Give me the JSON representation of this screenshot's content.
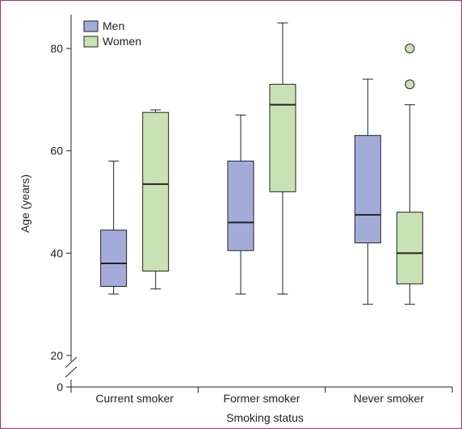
{
  "chart_data": {
    "type": "boxplot",
    "xlabel": "Smoking status",
    "ylabel": "Age (years)",
    "ylim": [
      0,
      85
    ],
    "y_axis_break": [
      0,
      20
    ],
    "yticks": [
      0,
      20,
      40,
      60,
      80
    ],
    "grid": false,
    "legend_placement": "top-left",
    "categories": [
      "Current smoker",
      "Former smoker",
      "Never smoker"
    ],
    "series": [
      {
        "name": "Men",
        "color": "#a3acd9",
        "boxes": [
          {
            "min": 32,
            "q1": 33.5,
            "median": 38,
            "q3": 44.5,
            "max": 58,
            "outliers": []
          },
          {
            "min": 32,
            "q1": 40.5,
            "median": 46,
            "q3": 58,
            "max": 67,
            "outliers": []
          },
          {
            "min": 30,
            "q1": 42,
            "median": 47.5,
            "q3": 63,
            "max": 74,
            "outliers": []
          }
        ]
      },
      {
        "name": "Women",
        "color": "#c9e2b4",
        "boxes": [
          {
            "min": 33,
            "q1": 36.5,
            "median": 53.5,
            "q3": 67.5,
            "max": 68,
            "outliers": []
          },
          {
            "min": 32,
            "q1": 52,
            "median": 69,
            "q3": 73,
            "max": 85,
            "outliers": []
          },
          {
            "min": 30,
            "q1": 34,
            "median": 40,
            "q3": 48,
            "max": 69,
            "outliers": [
              73,
              80
            ]
          }
        ]
      }
    ]
  }
}
